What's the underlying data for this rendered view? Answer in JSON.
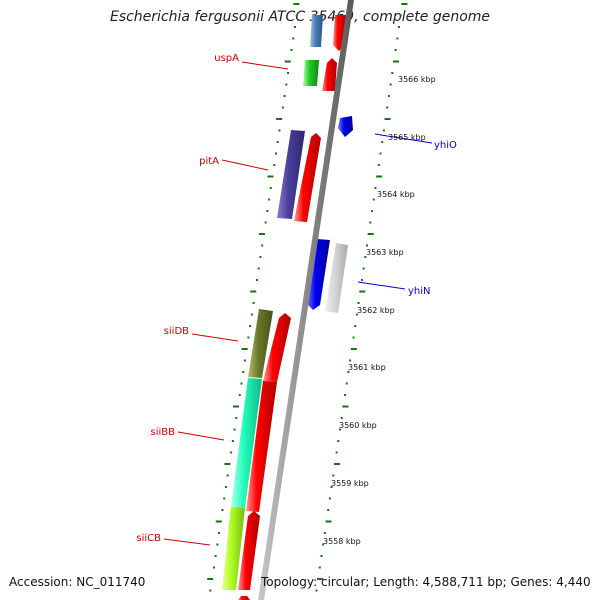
{
  "title": "Escherichia fergusonii ATCC 35469, complete genome",
  "footer": {
    "accession": "Accession: NC_011740",
    "topology": "Topology: circular; Length: 4,588,711 bp; Genes: 4,440"
  },
  "kbp_ticks": [
    "3566 kbp",
    "3565 kbp",
    "3564 kbp",
    "3563 kbp",
    "3562 kbp",
    "3561 kbp",
    "3560 kbp",
    "3559 kbp",
    "3558 kbp"
  ],
  "gene_labels": [
    {
      "name": "uspA",
      "side": "left",
      "color": "#cc0000"
    },
    {
      "name": "pitA",
      "side": "left",
      "color": "#cc0000"
    },
    {
      "name": "siiDB",
      "side": "left",
      "color": "#cc0000"
    },
    {
      "name": "siiBB",
      "side": "left",
      "color": "#cc0000"
    },
    {
      "name": "siiCB",
      "side": "left",
      "color": "#cc0000"
    },
    {
      "name": "yhiO",
      "side": "right",
      "color": "#0000cc"
    },
    {
      "name": "yhiN",
      "side": "right",
      "color": "#0000cc"
    }
  ],
  "colors": {
    "backbone": "#8a8a8a",
    "tick_green": "#117711",
    "cds_red": "#ff0000",
    "label_red": "#cc0000",
    "label_blue": "#0000cc"
  }
}
